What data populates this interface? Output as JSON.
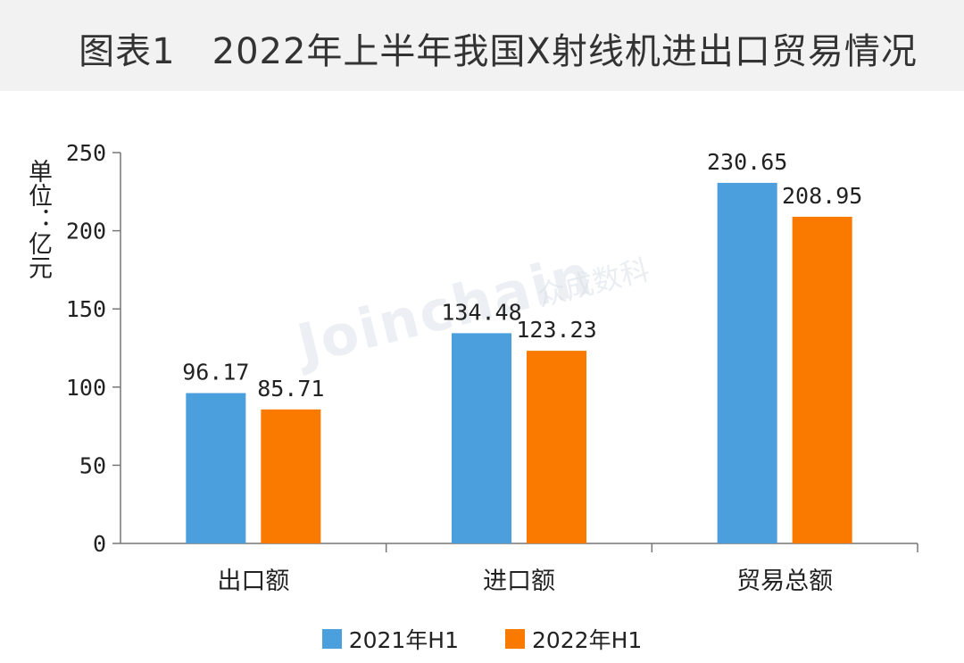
{
  "header": {
    "title": "图表1　2022年上半年我国X射线机进出口贸易情况"
  },
  "unit_label": "单位：亿元",
  "watermark": {
    "latin": "Joinchain",
    "cn": "众成数科"
  },
  "colors": {
    "series_2021": "#4a9fdc",
    "series_2022": "#fa7a00",
    "axis": "#777777",
    "text": "#222222"
  },
  "chart_data": {
    "type": "bar",
    "title": "2022年上半年我国X射线机进出口贸易情况",
    "xlabel": "",
    "ylabel": "单位：亿元",
    "ylim": [
      0,
      250
    ],
    "yticks": [
      0,
      50,
      100,
      150,
      200,
      250
    ],
    "categories": [
      "出口额",
      "进口额",
      "贸易总额"
    ],
    "series": [
      {
        "name": "2021年H1",
        "values": [
          96.17,
          134.48,
          230.65
        ],
        "labels": [
          "96.17",
          "134.48",
          "230.65"
        ]
      },
      {
        "name": "2022年H1",
        "values": [
          85.71,
          123.23,
          208.95
        ],
        "labels": [
          "85.71",
          "123.23",
          "208.95"
        ]
      }
    ],
    "legend_position": "bottom",
    "grid": false
  }
}
